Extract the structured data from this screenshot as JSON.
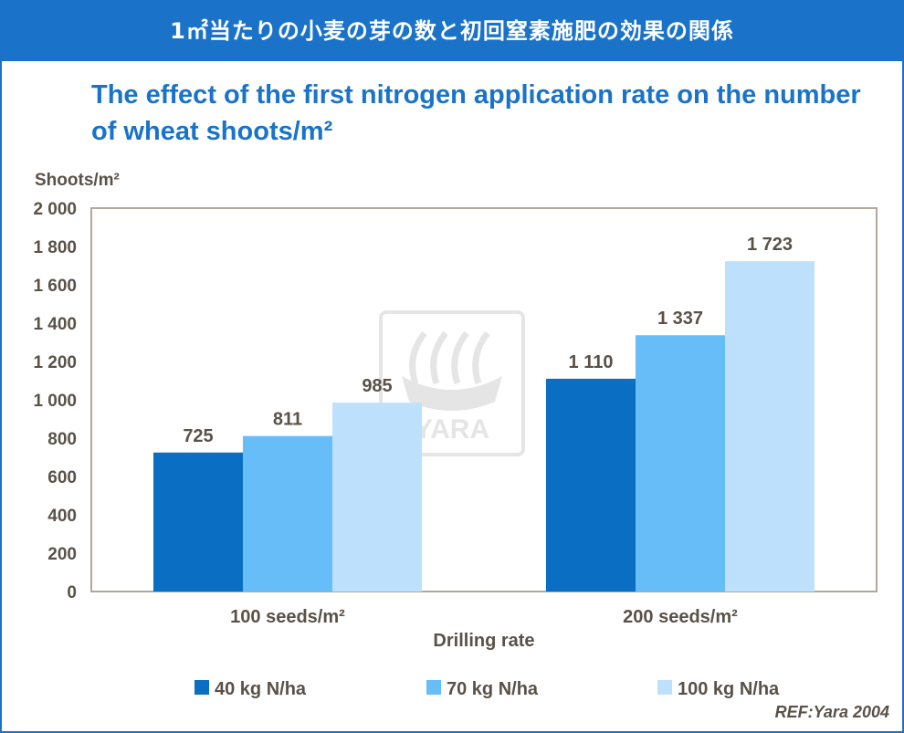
{
  "header": {
    "banner_title": "1㎡当たりの小麦の芽の数と初回窒素施肥の効果の関係",
    "chart_title": "The effect of the first nitrogen application rate on the number of wheat shoots/m²"
  },
  "watermark": {
    "text": "YARA"
  },
  "reference": "REF:Yara 2004",
  "colors": {
    "series_40": "#0a6ec2",
    "series_70": "#67bdf8",
    "series_100": "#bde1fd",
    "axis_text": "#5a5148",
    "accent": "#1a73c8"
  },
  "chart_data": {
    "type": "bar",
    "title": "The effect of the first nitrogen application rate on the number of wheat shoots/m²",
    "ylabel": "Shoots/m²",
    "xlabel": "Drilling rate",
    "categories": [
      "100 seeds/m²",
      "200 seeds/m²"
    ],
    "series": [
      {
        "name": "40 kg N/ha",
        "values": [
          725,
          1110
        ],
        "labels": [
          "725",
          "1 110"
        ]
      },
      {
        "name": "70 kg N/ha",
        "values": [
          811,
          1337
        ],
        "labels": [
          "811",
          "1 337"
        ]
      },
      {
        "name": "100 kg N/ha",
        "values": [
          985,
          1723
        ],
        "labels": [
          "985",
          "1 723"
        ]
      }
    ],
    "ylim": [
      0,
      2000
    ],
    "yticks": [
      0,
      200,
      400,
      600,
      800,
      1000,
      1200,
      1400,
      1600,
      1800,
      2000
    ],
    "ytick_labels": [
      "0",
      "200",
      "400",
      "600",
      "800",
      "1 000",
      "1 200",
      "1 400",
      "1 600",
      "1 800",
      "2 000"
    ],
    "grid": false,
    "legend_position": "bottom"
  }
}
